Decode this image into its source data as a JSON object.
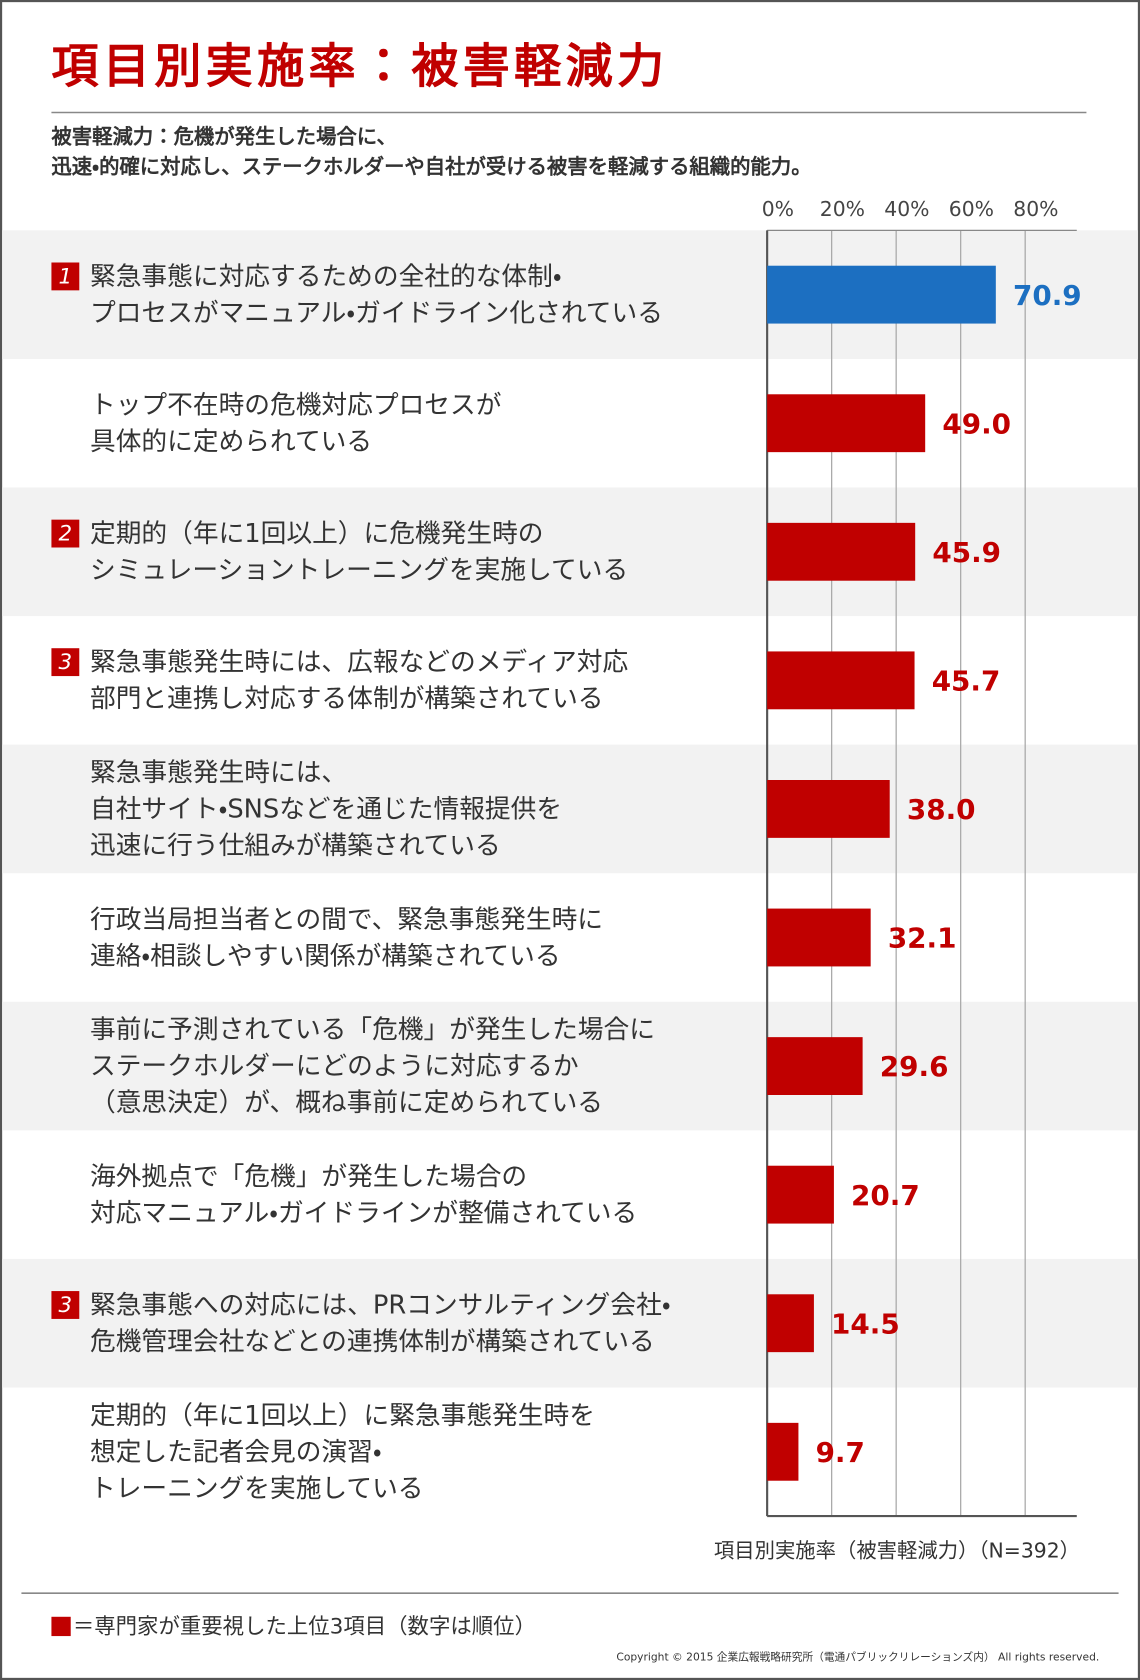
{
  "chart_data": {
    "type": "hbar",
    "title": "項目別実施率：被害軽減力",
    "subtitle": "被害軽減力：危機が発生した場合に、\n迅速・的確に対応し、ステークホルダーや自社が受ける被害を軽減する組織的能力。",
    "categories": [
      "緊急事態に対応するための全社的な体制・\nプロセスがマニュアル・ガイドライン化されている",
      "トップ不在時の危機対応プロセスが\n具体的に定められている",
      "定期的（年に1回以上）に危機発生時の\nシミュレーショントレーニングを実施している",
      "緊急事態発生時には、広報などのメディア対応\n部門と連携し対応する体制が構築されている",
      "緊急事態発生時には、\n自社サイト・SNSなどを通じた情報提供を\n迅速に行う仕組みが構築されている",
      "行政当局担当者との間で、緊急事態発生時に\n連絡・相談しやすい関係が構築されている",
      "事前に予測されている「危機」が発生した場合に\nステークホルダーにどのように対応するか\n（意思決定）が、概ね事前に定められている",
      "海外拠点で「危機」が発生した場合の\n対応マニュアル・ガイドラインが整備されている",
      "緊急事態への対応には、PRコンサルティング会社・\n危機管理会社などとの連携体制が構築されている",
      "定期的（年に1回以上）に緊急事態発生時を\n想定した記者会見の演習・\nトレーニングを実施している"
    ],
    "ranks": [
      1,
      null,
      2,
      3,
      null,
      null,
      null,
      null,
      3,
      null
    ],
    "values": [
      70.9,
      49.0,
      45.9,
      45.7,
      38.0,
      32.1,
      29.6,
      20.7,
      14.5,
      9.7
    ],
    "value_labels": [
      "70.9",
      "49.0",
      "45.9",
      "45.7",
      "38.0",
      "32.1",
      "29.6",
      "20.7",
      "14.5",
      "9.7"
    ],
    "colors": [
      "#1c6fc1",
      "#c00000",
      "#c00000",
      "#c00000",
      "#c00000",
      "#c00000",
      "#c00000",
      "#c00000",
      "#c00000",
      "#c00000"
    ],
    "xlim": [
      0,
      96
    ],
    "xticks": [
      {
        "value": 0,
        "label": "0%"
      },
      {
        "value": 20,
        "label": "20%"
      },
      {
        "value": 40,
        "label": "40%"
      },
      {
        "value": 60,
        "label": "60%"
      },
      {
        "value": 80,
        "label": "80%"
      }
    ],
    "grid": true,
    "xlabel": "項目別実施率（被害軽減力）（N=392）",
    "legend": "＝専門家が重要視した上位3項目（数字は順位）",
    "copyright": "Copyright © 2015 企業広報戦略研究所（電通パブリックリレーションズ内） All rights reserved."
  }
}
